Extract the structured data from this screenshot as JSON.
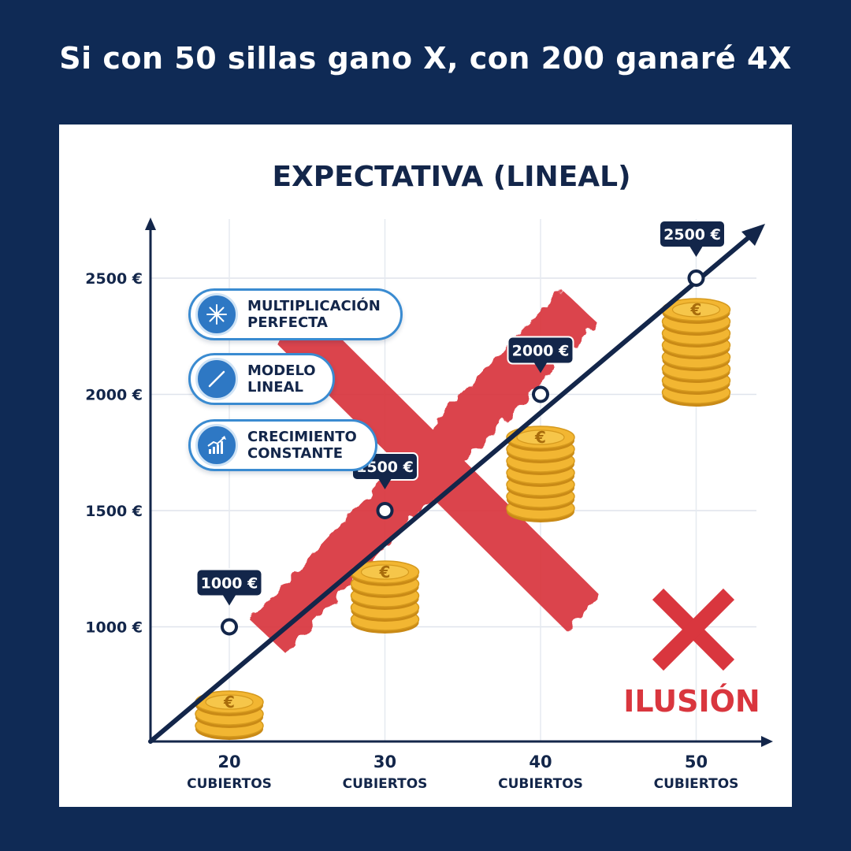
{
  "page": {
    "headline": "Si con 50 sillas gano X, con 200 ganaré 4X"
  },
  "features": [
    {
      "icon": "sparkle-icon",
      "line1": "MULTIPLICACIÓN",
      "line2": "PERFECTA"
    },
    {
      "icon": "diagonal-line-icon",
      "line1": "MODELO",
      "line2": "LINEAL"
    },
    {
      "icon": "growth-chart-icon",
      "line1": "CRECIMIENTO",
      "line2": "CONSTANTE"
    }
  ],
  "verdict": {
    "label": "ILUSIÓN",
    "icon": "red-x-icon"
  },
  "colors": {
    "background": "#0f2a55",
    "line": "#13264a",
    "cross": "#d9363e",
    "coin": "#f2b632",
    "pill_border": "#3a8bd1"
  },
  "chart_data": {
    "type": "line",
    "title": "EXPECTATIVA (LINEAL)",
    "categories": [
      "20",
      "30",
      "40",
      "50"
    ],
    "category_sublabel": "CUBIERTOS",
    "values": [
      1000,
      1500,
      2000,
      2500
    ],
    "data_labels": [
      "1000 €",
      "1500 €",
      "2000 €",
      "2500 €"
    ],
    "yticks": [
      1000,
      1500,
      2000,
      2500
    ],
    "ytick_labels": [
      "1000 €",
      "1500 €",
      "2000 €",
      "2500 €"
    ],
    "coin_stacks": [
      3,
      5,
      7,
      8
    ],
    "grid": true,
    "legend": "none"
  }
}
